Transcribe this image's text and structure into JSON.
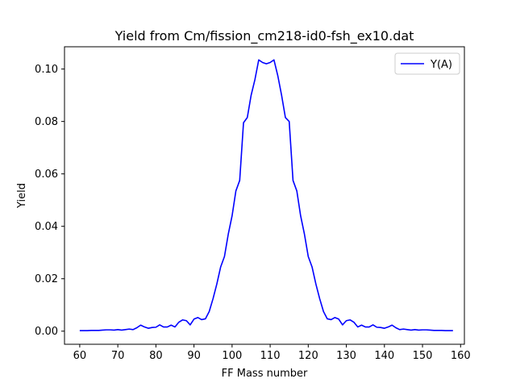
{
  "chart_data": {
    "type": "line",
    "title": "Yield from  Cm/fission_cm218-id0-fsh_ex10.dat",
    "xlabel": "FF Mass number",
    "ylabel": "Yield",
    "xlim": [
      56,
      161
    ],
    "ylim": [
      -0.005,
      0.1085
    ],
    "x_ticks": [
      60,
      70,
      80,
      90,
      100,
      110,
      120,
      130,
      140,
      150,
      160
    ],
    "y_ticks": [
      0.0,
      0.02,
      0.04,
      0.06,
      0.08,
      0.1
    ],
    "y_tick_labels": [
      "0.00",
      "0.02",
      "0.04",
      "0.06",
      "0.08",
      "0.10"
    ],
    "grid": false,
    "legend_position": "top-right",
    "color": "#0000ff",
    "series": [
      {
        "name": "Y(A)",
        "x": [
          60,
          61,
          62,
          63,
          64,
          65,
          66,
          67,
          68,
          69,
          70,
          71,
          72,
          73,
          74,
          75,
          76,
          77,
          78,
          79,
          80,
          81,
          82,
          83,
          84,
          85,
          86,
          87,
          88,
          89,
          90,
          91,
          92,
          93,
          94,
          95,
          96,
          97,
          98,
          99,
          100,
          101,
          102,
          103,
          104,
          105,
          106,
          107,
          108,
          109,
          110,
          111,
          112,
          113,
          114,
          115,
          116,
          117,
          118,
          119,
          120,
          121,
          122,
          123,
          124,
          125,
          126,
          127,
          128,
          129,
          130,
          131,
          132,
          133,
          134,
          135,
          136,
          137,
          138,
          139,
          140,
          141,
          142,
          143,
          144,
          145,
          146,
          147,
          148,
          149,
          150,
          151,
          152,
          153,
          154,
          155,
          156,
          157,
          158
        ],
        "y": [
          0.0002,
          0.0002,
          0.0002,
          0.0003,
          0.0003,
          0.0003,
          0.0004,
          0.0005,
          0.0005,
          0.0004,
          0.0006,
          0.0004,
          0.0006,
          0.0008,
          0.0006,
          0.0013,
          0.0023,
          0.0016,
          0.0011,
          0.0014,
          0.0015,
          0.0024,
          0.0016,
          0.0016,
          0.0023,
          0.0016,
          0.0034,
          0.0043,
          0.004,
          0.0024,
          0.0046,
          0.0052,
          0.0044,
          0.0047,
          0.0075,
          0.0124,
          0.018,
          0.0245,
          0.0285,
          0.037,
          0.044,
          0.0535,
          0.0575,
          0.0795,
          0.0815,
          0.09,
          0.096,
          0.1035,
          0.1025,
          0.102,
          0.1025,
          0.1035,
          0.0975,
          0.09,
          0.0815,
          0.08,
          0.0575,
          0.0535,
          0.044,
          0.037,
          0.0285,
          0.0245,
          0.018,
          0.0124,
          0.0075,
          0.0047,
          0.0044,
          0.0052,
          0.0046,
          0.0024,
          0.004,
          0.0043,
          0.0034,
          0.0016,
          0.0023,
          0.0016,
          0.0016,
          0.0024,
          0.0015,
          0.0014,
          0.0011,
          0.0016,
          0.0023,
          0.0013,
          0.0006,
          0.0008,
          0.0006,
          0.0004,
          0.0006,
          0.0004,
          0.0005,
          0.0005,
          0.0004,
          0.0003,
          0.0003,
          0.0003,
          0.0002,
          0.0002,
          0.0002
        ]
      }
    ]
  }
}
